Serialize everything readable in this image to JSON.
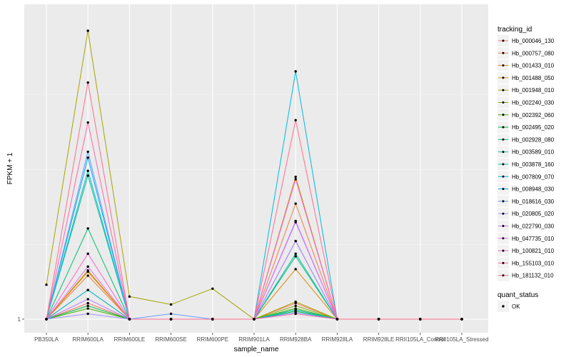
{
  "chart_data": {
    "type": "line",
    "title": "",
    "xlabel": "sample_name",
    "ylabel": "FPKM + 1",
    "scale": "log",
    "categories": [
      "PB350LA",
      "RRIM600LA",
      "RRIM600LE",
      "RRIM600SE",
      "RRIM600PE",
      "RRIM901LA",
      "RRIM928BA",
      "RRIM928LA",
      "RRIM928LE",
      "RRII105LA_Control",
      "RRII105LA_Stressed"
    ],
    "yticks": [
      1
    ],
    "ylim": [
      1,
      1.25
    ],
    "grid": true,
    "legend_position": "right",
    "legend_title": "tracking_id",
    "series": [
      {
        "name": "Hb_000046_130",
        "color": "#F8766D",
        "values": [
          1,
          1.012,
          1,
          1,
          1,
          1,
          1.012,
          1,
          1,
          1,
          1
        ]
      },
      {
        "name": "Hb_000757_080",
        "color": "#EE8044",
        "values": [
          1,
          1.033,
          1,
          1,
          1,
          1,
          1.09,
          1,
          1,
          1,
          1
        ]
      },
      {
        "name": "Hb_001433_010",
        "color": "#E0890B",
        "values": [
          1,
          1.036,
          1,
          1,
          1,
          1,
          1.038,
          1,
          1,
          1,
          1
        ]
      },
      {
        "name": "Hb_001488_050",
        "color": "#CE9500",
        "values": [
          1,
          1.037,
          1,
          1,
          1,
          1,
          1.112,
          1,
          1,
          1,
          1
        ]
      },
      {
        "name": "Hb_001948_010",
        "color": "#A7A300",
        "values": [
          1.026,
          1.24,
          1.017,
          1.011,
          1.023,
          1,
          1.013,
          1,
          1,
          1,
          1
        ]
      },
      {
        "name": "Hb_002240_030",
        "color": "#7CAE00",
        "values": [
          1,
          1.022,
          1,
          1,
          1,
          1,
          1.01,
          1,
          1,
          1,
          1
        ]
      },
      {
        "name": "Hb_002392_060",
        "color": "#3BB300",
        "values": [
          1,
          1.008,
          1,
          1,
          1,
          1,
          1.008,
          1,
          1,
          1,
          1
        ]
      },
      {
        "name": "Hb_002495_020",
        "color": "#00BA38",
        "values": [
          1,
          1.01,
          1,
          1,
          1,
          1,
          1.006,
          1,
          1,
          1,
          1
        ]
      },
      {
        "name": "Hb_002928_080",
        "color": "#00BF73",
        "values": [
          1,
          1.07,
          1,
          1,
          1,
          1,
          1.048,
          1,
          1,
          1,
          1
        ]
      },
      {
        "name": "Hb_003589_010",
        "color": "#00C19C",
        "values": [
          1,
          1.113,
          1,
          1,
          1,
          1,
          1.05,
          1,
          1,
          1,
          1
        ]
      },
      {
        "name": "Hb_003878_160",
        "color": "#00BFC4",
        "values": [
          1,
          1.117,
          1,
          1,
          1,
          1,
          1.007,
          1,
          1,
          1,
          1
        ]
      },
      {
        "name": "Hb_007809_070",
        "color": "#00B8E5",
        "values": [
          1,
          1.022,
          1,
          1,
          1,
          1,
          1.203,
          1,
          1,
          1,
          1
        ]
      },
      {
        "name": "Hb_008948_030",
        "color": "#00A9FF",
        "values": [
          1,
          1.128,
          1,
          1,
          1,
          1,
          1.06,
          1,
          1,
          1,
          1
        ]
      },
      {
        "name": "Hb_018616_030",
        "color": "#619CFF",
        "values": [
          1,
          1.133,
          1,
          1.004,
          1,
          1,
          1.005,
          1,
          1,
          1,
          1
        ]
      },
      {
        "name": "Hb_020805_020",
        "color": "#9E8FFF",
        "values": [
          1,
          1.004,
          1,
          1,
          1,
          1,
          1.075,
          1,
          1,
          1,
          1
        ]
      },
      {
        "name": "Hb_022790_030",
        "color": "#C77CFF",
        "values": [
          1,
          1.015,
          1,
          1,
          1,
          1,
          1.06,
          1,
          1,
          1,
          1
        ]
      },
      {
        "name": "Hb_047735_010",
        "color": "#E76BF3",
        "values": [
          1,
          1.04,
          1,
          1,
          1,
          1,
          1.076,
          1,
          1,
          1,
          1
        ]
      },
      {
        "name": "Hb_100821_010",
        "color": "#FD61D1",
        "values": [
          1,
          1.05,
          1,
          1,
          1,
          1,
          1.11,
          1,
          1,
          1,
          1
        ]
      },
      {
        "name": "Hb_155103_010",
        "color": "#FF67A4",
        "values": [
          1,
          1.158,
          1,
          1,
          1,
          1,
          1.004,
          1,
          1,
          1,
          1
        ]
      },
      {
        "name": "Hb_181132_010",
        "color": "#FF6C91",
        "values": [
          1,
          1.193,
          1,
          1,
          1,
          1,
          1.16,
          1,
          1,
          1,
          1
        ]
      }
    ],
    "shape_legend": {
      "title": "quant_status",
      "items": [
        "OK"
      ]
    }
  }
}
